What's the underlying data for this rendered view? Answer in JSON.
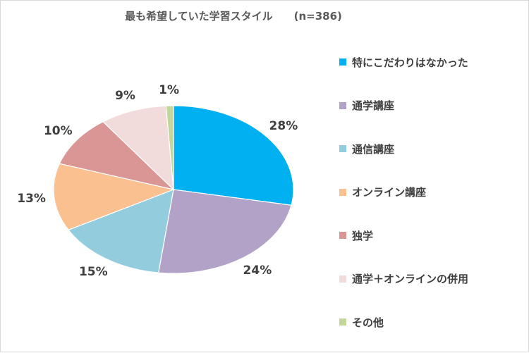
{
  "chart_data": {
    "type": "pie",
    "title": "最も希望していた学習スタイル　　(n=386)",
    "slices": [
      {
        "label": "特にこだわりはなかった",
        "value": 28,
        "value_label": "28%",
        "color": "#00b0f0"
      },
      {
        "label": "通学講座",
        "value": 24,
        "value_label": "24%",
        "color": "#b3a2c7"
      },
      {
        "label": "通信講座",
        "value": 15,
        "value_label": "15%",
        "color": "#93cddd"
      },
      {
        "label": "オンライン講座",
        "value": 13,
        "value_label": "13%",
        "color": "#fac090"
      },
      {
        "label": "独学",
        "value": 10,
        "value_label": "10%",
        "color": "#d99694"
      },
      {
        "label": "通学＋オンラインの併用",
        "value": 9,
        "value_label": "9%",
        "color": "#f2dcdb"
      },
      {
        "label": "その他",
        "value": 1,
        "value_label": "1%",
        "color": "#c3d69b"
      }
    ],
    "legend_position": "right"
  }
}
